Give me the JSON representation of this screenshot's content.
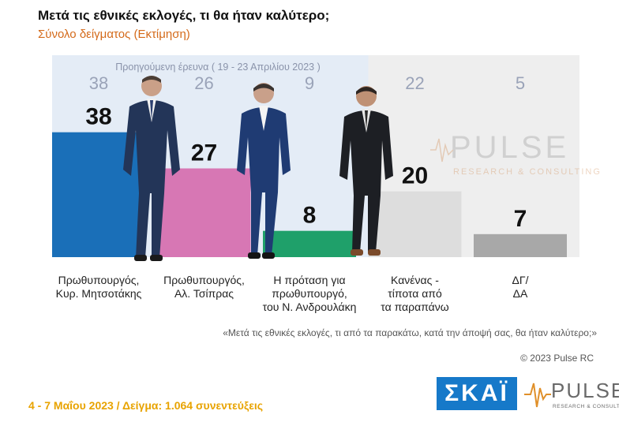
{
  "header": {
    "title": "Μετά τις εθνικές εκλογές, τι θα ήταν καλύτερο;",
    "subtitle": "Σύνολο δείγματος  (Εκτίμηση)"
  },
  "chart_data": {
    "type": "bar",
    "title": "Μετά τις εθνικές εκλογές, τι θα ήταν καλύτερο;",
    "subtitle": "Σύνολο δείγματος  (Εκτίμηση)",
    "categories": [
      "Πρωθυπουργός, Κυρ. Μητσοτάκης",
      "Πρωθυπουργός, Αλ. Τσίπρας",
      "Η πρόταση για πρωθυπουργό, του Ν. Ανδρουλάκη",
      "Κανένας - τίποτα από τα παραπάνω",
      "ΔΓ/ ΔΑ"
    ],
    "category_lines": [
      [
        "Πρωθυπουργός,",
        "Κυρ. Μητσοτάκης"
      ],
      [
        "Πρωθυπουργός,",
        "Αλ. Τσίπρας"
      ],
      [
        "Η πρόταση για",
        "πρωθυπουργό,",
        "του Ν. Ανδρουλάκη"
      ],
      [
        "Κανένας -",
        "τίποτα από",
        "τα παραπάνω"
      ],
      [
        "ΔΓ/",
        "ΔΑ"
      ]
    ],
    "series": [
      {
        "name": "",
        "values": [
          38,
          27,
          8,
          20,
          7
        ]
      },
      {
        "name": "Προηγούμενη έρευνα  ( 19 - 23 Απριλίου  2023 )",
        "values": [
          38,
          26,
          9,
          22,
          5
        ]
      }
    ],
    "colors": [
      "#1a6fb8",
      "#d777b4",
      "#1fa06a",
      "#dddddd",
      "#a8a8a8"
    ],
    "previous_panel_colors": [
      "#e4ecf6",
      "#e4ecf6",
      "#e4ecf6",
      "#eeeeee",
      "#eeeeee"
    ],
    "ylim": [
      0,
      60
    ],
    "grid": false,
    "legend": "none"
  },
  "question_text": "«Μετά τις εθνικές εκλογές, τι από τα παρακάτω, κατά την άποψή σας, θα ήταν καλύτερο;»",
  "copyright": "© 2023 Pulse RC",
  "footer_text": "4 - 7  Μαΐου  2023  /  Δείγμα:  1.064 συνεντεύξεις",
  "logos": {
    "skai": "ΣΚΑΪ",
    "pulse": "PULSE",
    "pulse_tagline": "RESEARCH & CONSULTING"
  }
}
